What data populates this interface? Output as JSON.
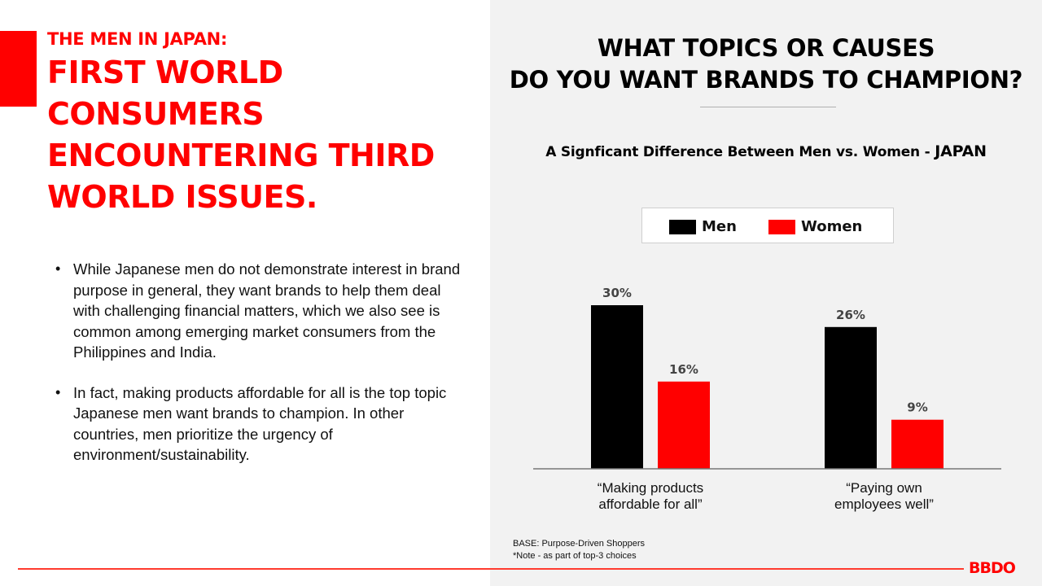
{
  "left": {
    "eyebrow": "THE MEN IN JAPAN:",
    "headline": "FIRST WORLD CONSUMERS ENCOUNTERING THIRD WORLD ISSUES.",
    "bullets": [
      "While Japanese men do not demonstrate interest in brand purpose in general, they want brands to help them deal with challenging financial matters, which we also see is common among emerging market consumers from the Philippines and India.",
      "In fact, making products affordable for all is the top topic Japanese men want brands to champion. In other countries, men prioritize the urgency of environment/sustainability."
    ],
    "bullet_glyph": "•"
  },
  "chart_data": {
    "type": "bar",
    "title_line1": "WHAT TOPICS OR CAUSES",
    "title_line2": "DO YOU WANT BRANDS TO CHAMPION?",
    "subtitle": "A Signficant Difference Between Men vs. Women - ",
    "subtitle_country": "JAPAN",
    "categories": [
      [
        "“Making products",
        "affordable for all”"
      ],
      [
        "“Paying own",
        "employees well”"
      ]
    ],
    "series": [
      {
        "name": "Men",
        "color": "#000000",
        "values": [
          30,
          26
        ]
      },
      {
        "name": "Women",
        "color": "#ff0000",
        "values": [
          16,
          9
        ]
      }
    ],
    "value_suffix": "%",
    "ylim": [
      0,
      30
    ],
    "legend_position": "top-center",
    "grid": false
  },
  "footnote": {
    "base": "BASE: Purpose-Driven Shoppers",
    "note": "*Note - as part of top-3 choices"
  },
  "brand": {
    "logo_text": "BBDO",
    "accent": "#ff0000"
  }
}
